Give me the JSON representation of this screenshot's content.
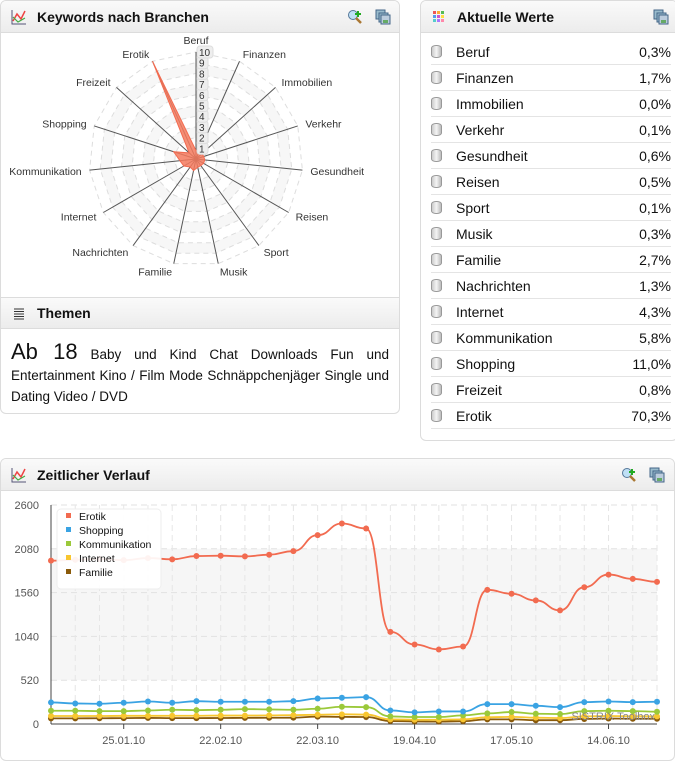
{
  "panels": {
    "keywords": {
      "title": "Keywords nach Branchen"
    },
    "themes": {
      "title": "Themen",
      "big_item": "Ab 18",
      "items": "Baby und Kind Chat Downloads Fun und Entertainment Kino / Film Mode Schnäppchenjäger Single und Dating Video / DVD"
    },
    "current": {
      "title": "Aktuelle Werte",
      "rows": [
        {
          "label": "Beruf",
          "value": "0,3%"
        },
        {
          "label": "Finanzen",
          "value": "1,7%"
        },
        {
          "label": "Immobilien",
          "value": "0,0%"
        },
        {
          "label": "Verkehr",
          "value": "0,1%"
        },
        {
          "label": "Gesundheit",
          "value": "0,6%"
        },
        {
          "label": "Reisen",
          "value": "0,5%"
        },
        {
          "label": "Sport",
          "value": "0,1%"
        },
        {
          "label": "Musik",
          "value": "0,3%"
        },
        {
          "label": "Familie",
          "value": "2,7%"
        },
        {
          "label": "Nachrichten",
          "value": "1,3%"
        },
        {
          "label": "Internet",
          "value": "4,3%"
        },
        {
          "label": "Kommunikation",
          "value": "5,8%"
        },
        {
          "label": "Shopping",
          "value": "11,0%"
        },
        {
          "label": "Freizeit",
          "value": "0,8%"
        },
        {
          "label": "Erotik",
          "value": "70,3%"
        }
      ]
    },
    "timeline": {
      "title": "Zeitlicher Verlauf",
      "watermark": "SISTRIX Toolbox"
    }
  },
  "icons": {
    "zoom": "zoom-plus-icon",
    "save": "save-copy-icon",
    "chart": "chart-icon",
    "list": "list-icon",
    "grid": "color-grid-icon",
    "db": "database-icon"
  },
  "colors": {
    "erotik": "#f26b50",
    "shopping": "#3aa3e3",
    "kommunikation": "#9bc93a",
    "internet": "#f8c630",
    "familie": "#8a5a0a"
  },
  "chart_data": [
    {
      "type": "radar",
      "categories": [
        "Beruf",
        "Finanzen",
        "Immobilien",
        "Verkehr",
        "Gesundheit",
        "Reisen",
        "Sport",
        "Musik",
        "Familie",
        "Nachrichten",
        "Internet",
        "Kommunikation",
        "Shopping",
        "Freizeit",
        "Erotik"
      ],
      "values": [
        0.3,
        1.7,
        0.0,
        0.1,
        0.6,
        0.5,
        0.1,
        0.3,
        2.7,
        1.3,
        4.3,
        5.8,
        11.0,
        0.8,
        70.3
      ],
      "radial_ticks": [
        "1",
        "2",
        "3",
        "4",
        "5",
        "6",
        "7",
        "8",
        "9",
        "10"
      ],
      "rmax": 70.3,
      "grid": true
    },
    {
      "type": "line",
      "x": [
        "04.01.10",
        "11.01.10",
        "18.01.10",
        "25.01.10",
        "01.02.10",
        "08.02.10",
        "15.02.10",
        "22.02.10",
        "01.03.10",
        "08.03.10",
        "15.03.10",
        "22.03.10",
        "29.03.10",
        "05.04.10",
        "12.04.10",
        "19.04.10",
        "26.04.10",
        "03.05.10",
        "10.05.10",
        "17.05.10",
        "24.05.10",
        "31.05.10",
        "07.06.10",
        "14.06.10",
        "21.06.10",
        "28.06.10"
      ],
      "xtick_labels": [
        "25.01.10",
        "22.02.10",
        "22.03.10",
        "19.04.10",
        "17.05.10",
        "14.06.10"
      ],
      "yticks": [
        0,
        520,
        1040,
        1560,
        2080,
        2600
      ],
      "ylim": [
        0,
        2600
      ],
      "grid": true,
      "legend": "top-left",
      "series": [
        {
          "name": "Erotik",
          "values": [
            1939,
            1950,
            1960,
            1945,
            1970,
            1955,
            1994,
            1998,
            1990,
            2010,
            2053,
            2242,
            2380,
            2321,
            1094,
            944,
            885,
            920,
            1593,
            1546,
            1467,
            1349,
            1624,
            1774,
            1723,
            1687
          ]
        },
        {
          "name": "Shopping",
          "values": [
            256,
            244,
            240,
            252,
            267,
            252,
            271,
            264,
            264,
            264,
            271,
            303,
            311,
            319,
            161,
            138,
            149,
            149,
            236,
            236,
            216,
            200,
            260,
            267,
            260,
            264
          ]
        },
        {
          "name": "Kommunikation",
          "values": [
            157,
            157,
            153,
            153,
            160,
            169,
            165,
            169,
            177,
            173,
            169,
            181,
            205,
            200,
            90,
            83,
            83,
            102,
            126,
            142,
            122,
            118,
            153,
            157,
            153,
            146
          ]
        },
        {
          "name": "Internet",
          "values": [
            95,
            95,
            95,
            97,
            97,
            98,
            98,
            100,
            100,
            102,
            105,
            110,
            115,
            112,
            55,
            50,
            50,
            55,
            80,
            85,
            75,
            70,
            90,
            95,
            92,
            90
          ]
        },
        {
          "name": "Familie",
          "values": [
            67,
            67,
            68,
            70,
            72,
            70,
            70,
            71,
            73,
            74,
            75,
            88,
            85,
            83,
            35,
            30,
            28,
            33,
            55,
            55,
            45,
            45,
            60,
            65,
            62,
            62
          ]
        }
      ]
    }
  ]
}
